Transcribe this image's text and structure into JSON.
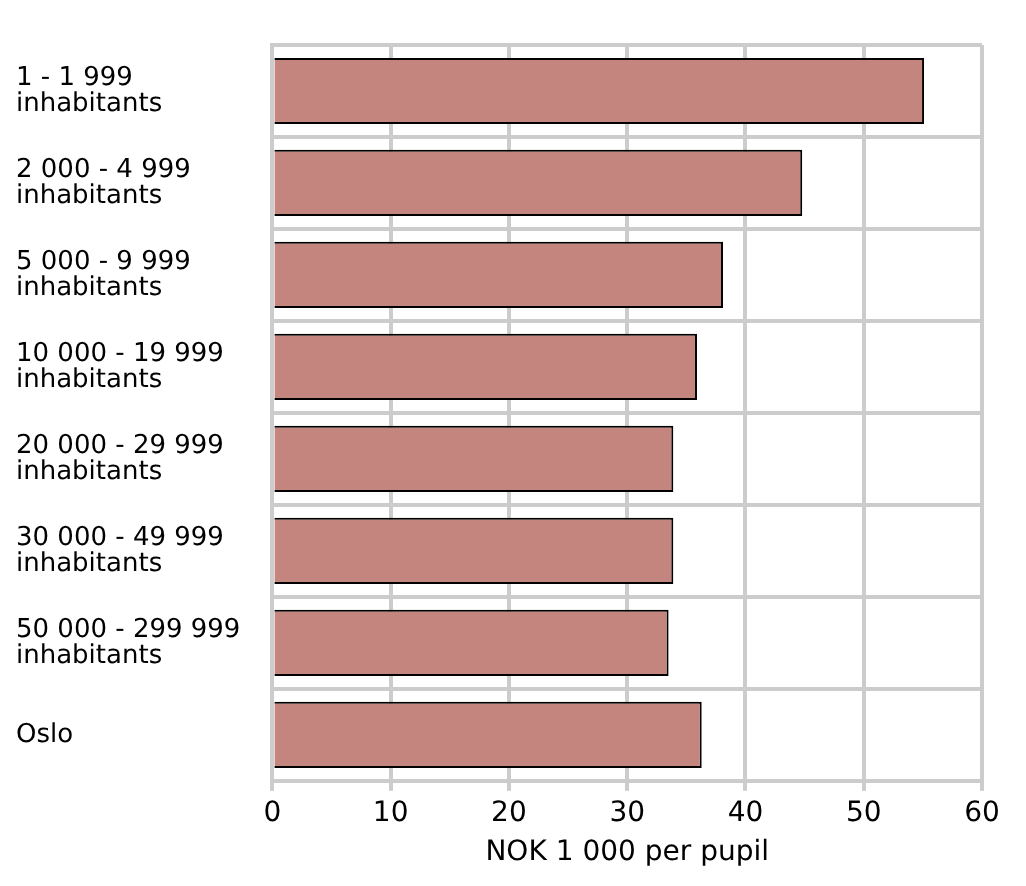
{
  "chart_data": {
    "type": "bar",
    "orientation": "horizontal",
    "xlabel": "NOK 1 000 per pupil",
    "categories": [
      "1 - 1 999 inhabitants",
      "2 000 - 4 999 inhabitants",
      "5 000 - 9 999 inhabitants",
      "10 000 - 19 999 inhabitants",
      "20 000 - 29 999 inhabitants",
      "30 000 - 49 999 inhabitants",
      "50 000 - 299 999 inhabitants",
      "Oslo"
    ],
    "values": [
      55.1,
      44.8,
      38.1,
      35.9,
      33.9,
      33.9,
      33.5,
      36.3
    ],
    "color": "#c4857e",
    "xlim": [
      0,
      60
    ],
    "xticks": [
      0,
      10,
      20,
      30,
      40,
      50,
      60
    ],
    "grid": true,
    "legend": false
  }
}
